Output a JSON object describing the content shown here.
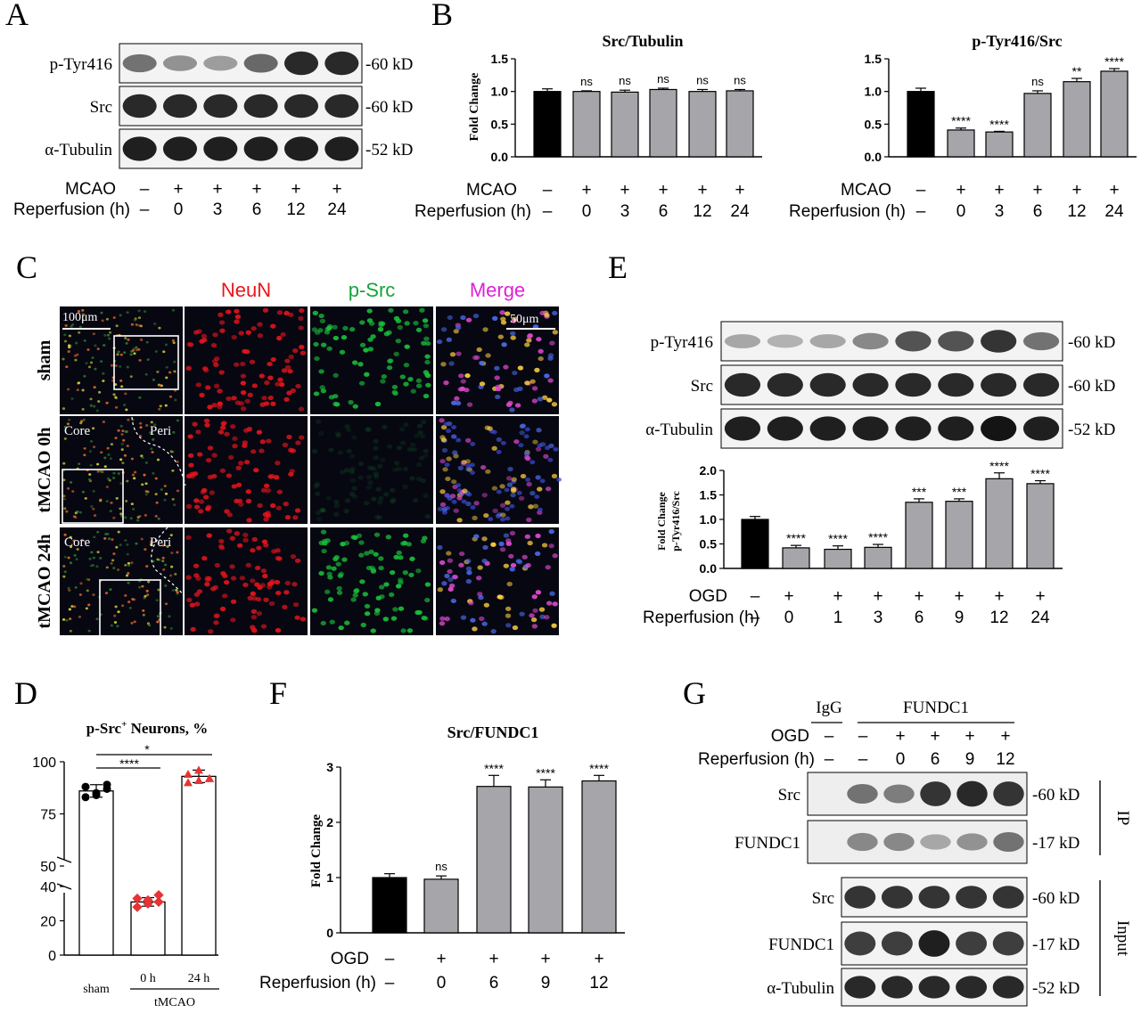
{
  "panels": {
    "A": "A",
    "B": "B",
    "C": "C",
    "D": "D",
    "E": "E",
    "F": "F",
    "G": "G"
  },
  "blotA": {
    "labels": [
      "p-Tyr416",
      "Src",
      "α-Tubulin"
    ],
    "kd": [
      "-60 kD",
      "-60 kD",
      "-52 kD"
    ],
    "cond_labels": [
      "MCAO",
      "Reperfusion (h)"
    ],
    "mcao": [
      "–",
      "+",
      "+",
      "+",
      "+",
      "+"
    ],
    "reperfusion": [
      "–",
      "0",
      "3",
      "6",
      "12",
      "24"
    ],
    "band_intensity": [
      [
        0.55,
        0.4,
        0.35,
        0.6,
        0.9,
        0.9
      ],
      [
        0.9,
        0.9,
        0.9,
        0.9,
        0.9,
        0.9
      ],
      [
        0.95,
        0.95,
        0.95,
        0.95,
        0.95,
        0.95
      ]
    ]
  },
  "blotE": {
    "labels": [
      "p-Tyr416",
      "Src",
      "α-Tubulin"
    ],
    "kd": [
      "-60 kD",
      "-60 kD",
      "-52 kD"
    ],
    "band_intensity": [
      [
        0.3,
        0.25,
        0.3,
        0.45,
        0.7,
        0.7,
        0.85,
        0.55
      ],
      [
        0.9,
        0.9,
        0.9,
        0.9,
        0.9,
        0.9,
        0.9,
        0.9
      ],
      [
        0.95,
        0.95,
        0.95,
        0.95,
        0.95,
        0.95,
        1.0,
        0.95
      ]
    ]
  },
  "blotG": {
    "header": {
      "igg": "IgG",
      "fundc1": "FUNDC1"
    },
    "cond_labels": [
      "OGD",
      "Reperfusion (h)"
    ],
    "ogd": [
      "–",
      "–",
      "+",
      "+",
      "+",
      "+"
    ],
    "reperfusion": [
      "–",
      "–",
      "0",
      "6",
      "9",
      "12"
    ],
    "ip_labels": [
      "Src",
      "FUNDC1"
    ],
    "ip_kd": [
      "-60 kD",
      "-17 kD"
    ],
    "input_labels": [
      "Src",
      "FUNDC1",
      "α-Tubulin"
    ],
    "input_kd": [
      "-60 kD",
      "-17 kD",
      "-52 kD"
    ],
    "ip_tag": "IP",
    "input_tag": "Input"
  },
  "panelC": {
    "columns": [
      "NeuN",
      "p-Src",
      "Merge"
    ],
    "rows": [
      "sham",
      "tMCAO 0h",
      "tMCAO 24h"
    ],
    "scale_left": "100μm",
    "scale_right": "50μm",
    "core": "Core",
    "peri": "Peri",
    "column_colors": [
      "#e8151b",
      "#13a538",
      "#e020d8"
    ]
  },
  "chart_data": [
    {
      "id": "B1",
      "type": "bar",
      "title": "Src/Tubulin",
      "ylabel": "Fold Change",
      "ylim": [
        0,
        1.5
      ],
      "yticks": [
        "0.0",
        "0.5",
        "1.0",
        "1.5"
      ],
      "values": [
        1.0,
        1.0,
        0.99,
        1.03,
        1.0,
        1.01
      ],
      "errors": [
        0.04,
        0.01,
        0.03,
        0.02,
        0.03,
        0.02
      ],
      "significance": [
        "",
        "ns",
        "ns",
        "ns",
        "ns",
        "ns"
      ],
      "condition_labels": [
        "MCAO",
        "Reperfusion (h)"
      ],
      "row1": [
        "–",
        "+",
        "+",
        "+",
        "+",
        "+"
      ],
      "row2": [
        "–",
        "0",
        "3",
        "6",
        "12",
        "24"
      ]
    },
    {
      "id": "B2",
      "type": "bar",
      "title": "p-Tyr416/Src",
      "ylabel": "",
      "ylim": [
        0,
        1.5
      ],
      "yticks": [
        "0.0",
        "0.5",
        "1.0",
        "1.5"
      ],
      "values": [
        1.0,
        0.41,
        0.38,
        0.97,
        1.15,
        1.31
      ],
      "errors": [
        0.05,
        0.03,
        0.01,
        0.04,
        0.05,
        0.04
      ],
      "significance": [
        "",
        "****",
        "****",
        "ns",
        "**",
        "****"
      ],
      "condition_labels": [
        "MCAO",
        "Reperfusion (h)"
      ],
      "row1": [
        "–",
        "+",
        "+",
        "+",
        "+",
        "+"
      ],
      "row2": [
        "–",
        "0",
        "3",
        "6",
        "12",
        "24"
      ]
    },
    {
      "id": "E",
      "type": "bar",
      "title": "",
      "ylabel": "Fold Change",
      "ylabel2": "p-Tyr416/Src",
      "ylim": [
        0,
        2
      ],
      "yticks": [
        "0.0",
        "0.5",
        "1.0",
        "1.5",
        "2.0"
      ],
      "values": [
        1.0,
        0.42,
        0.39,
        0.43,
        1.35,
        1.37,
        1.83,
        1.73
      ],
      "errors": [
        0.06,
        0.05,
        0.07,
        0.06,
        0.07,
        0.05,
        0.12,
        0.06
      ],
      "significance": [
        "",
        "****",
        "****",
        "****",
        "***",
        "***",
        "****",
        "****"
      ],
      "condition_labels": [
        "OGD",
        "Reperfusion (h)"
      ],
      "row1": [
        "–",
        "+",
        "+",
        "+",
        "+",
        "+",
        "+",
        "+"
      ],
      "row2": [
        "–",
        "0",
        "1",
        "3",
        "6",
        "9",
        "12",
        "24"
      ]
    },
    {
      "id": "F",
      "type": "bar",
      "title": "Src/FUNDC1",
      "ylabel": "Fold Change",
      "ylim": [
        0,
        3
      ],
      "yticks": [
        "0",
        "1",
        "2",
        "3"
      ],
      "values": [
        1.0,
        0.97,
        2.65,
        2.64,
        2.75
      ],
      "errors": [
        0.07,
        0.06,
        0.2,
        0.13,
        0.1
      ],
      "significance": [
        "",
        "ns",
        "****",
        "****",
        "****"
      ],
      "condition_labels": [
        "OGD",
        "Reperfusion (h)"
      ],
      "row1": [
        "–",
        "+",
        "+",
        "+",
        "+"
      ],
      "row2": [
        "–",
        "0",
        "6",
        "9",
        "12"
      ]
    },
    {
      "id": "D",
      "type": "bar",
      "title": "p-Src⁺ Neurons, %",
      "title_main": "p-Src",
      "title_sup": "+",
      "title_rest": " Neurons, %",
      "yticks_top": [
        "75",
        "100"
      ],
      "yticks_bottom": [
        "0",
        "20",
        "40"
      ],
      "break_label": "50",
      "categories": [
        "sham",
        "0 h",
        "24 h"
      ],
      "group_label": "tMCAO",
      "values": [
        86,
        31,
        93
      ],
      "errors": [
        3,
        2.5,
        3
      ],
      "points": [
        [
          83,
          85,
          87,
          88,
          84,
          89
        ],
        [
          28,
          30,
          31,
          33,
          32,
          35
        ],
        [
          90,
          91,
          92,
          94,
          96,
          92
        ]
      ],
      "colors": [
        "#000000",
        "#e63333",
        "#e63333"
      ],
      "significance": [
        "****",
        "*"
      ]
    }
  ],
  "colors": {
    "control": "#000000",
    "treated": "#a6a6aa",
    "red": "#e63333"
  }
}
